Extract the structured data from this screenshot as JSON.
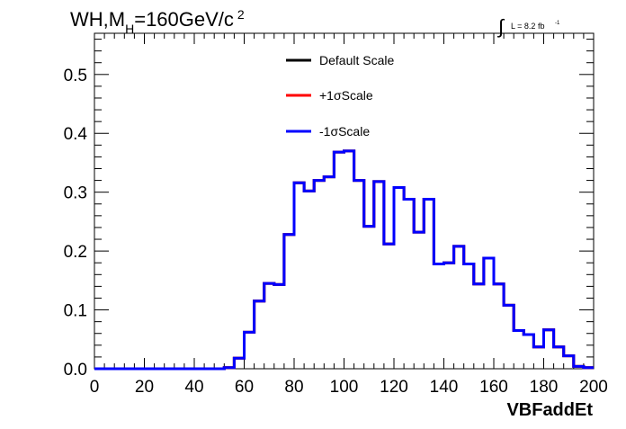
{
  "title": {
    "main": "WH,M",
    "subscript": "H",
    "suffix": "=160GeV/c",
    "superscript": "2"
  },
  "luminosity": {
    "integral_symbol": "∫",
    "label": "L = 8.2 fb",
    "exponent": "-1"
  },
  "chart_data": {
    "type": "line",
    "style": "step-histogram",
    "xlabel": "VBFaddEt",
    "ylabel": "",
    "xlim": [
      0,
      200
    ],
    "ylim": [
      0,
      0.57
    ],
    "xticks": [
      "0",
      "20",
      "40",
      "60",
      "80",
      "100",
      "120",
      "140",
      "160",
      "180",
      "200"
    ],
    "yticks": [
      "0.0",
      "0.1",
      "0.2",
      "0.3",
      "0.4",
      "0.5"
    ],
    "grid": false,
    "legend_position": "top-center",
    "bin_edges": [
      0,
      4,
      8,
      12,
      16,
      20,
      24,
      28,
      32,
      36,
      40,
      44,
      48,
      52,
      56,
      60,
      64,
      68,
      72,
      76,
      80,
      84,
      88,
      92,
      96,
      100,
      104,
      108,
      112,
      116,
      120,
      124,
      128,
      132,
      136,
      140,
      144,
      148,
      152,
      156,
      160,
      164,
      168,
      172,
      176,
      180,
      184,
      188,
      192,
      196,
      200
    ],
    "series": [
      {
        "name": "Default Scale",
        "color": "#000000",
        "values": [
          0,
          0,
          0,
          0,
          0,
          0,
          0,
          0,
          0,
          0,
          0,
          0,
          0,
          0.002,
          0.018,
          0.062,
          0.115,
          0.145,
          0.143,
          0.228,
          0.316,
          0.302,
          0.32,
          0.326,
          0.368,
          0.37,
          0.32,
          0.242,
          0.318,
          0.212,
          0.308,
          0.288,
          0.232,
          0.288,
          0.178,
          0.18,
          0.208,
          0.178,
          0.144,
          0.188,
          0.144,
          0.108,
          0.065,
          0.058,
          0.037,
          0.066,
          0.037,
          0.022,
          0.004,
          0.002
        ]
      },
      {
        "name": "+1σScale",
        "color": "#ff0000",
        "values": [
          0,
          0,
          0,
          0,
          0,
          0,
          0,
          0,
          0,
          0,
          0,
          0,
          0,
          0.002,
          0.018,
          0.062,
          0.115,
          0.145,
          0.143,
          0.228,
          0.316,
          0.302,
          0.32,
          0.326,
          0.368,
          0.37,
          0.32,
          0.242,
          0.318,
          0.212,
          0.308,
          0.288,
          0.232,
          0.288,
          0.178,
          0.18,
          0.208,
          0.178,
          0.144,
          0.188,
          0.144,
          0.108,
          0.065,
          0.058,
          0.037,
          0.066,
          0.037,
          0.022,
          0.004,
          0.002
        ]
      },
      {
        "name": "-1σScale",
        "color": "#0000ff",
        "values": [
          0,
          0,
          0,
          0,
          0,
          0,
          0,
          0,
          0,
          0,
          0,
          0,
          0,
          0.002,
          0.018,
          0.062,
          0.115,
          0.145,
          0.143,
          0.228,
          0.316,
          0.302,
          0.32,
          0.326,
          0.368,
          0.37,
          0.32,
          0.242,
          0.318,
          0.212,
          0.308,
          0.288,
          0.232,
          0.288,
          0.178,
          0.18,
          0.208,
          0.178,
          0.144,
          0.188,
          0.144,
          0.108,
          0.065,
          0.058,
          0.037,
          0.066,
          0.037,
          0.022,
          0.004,
          0.002
        ]
      }
    ]
  }
}
